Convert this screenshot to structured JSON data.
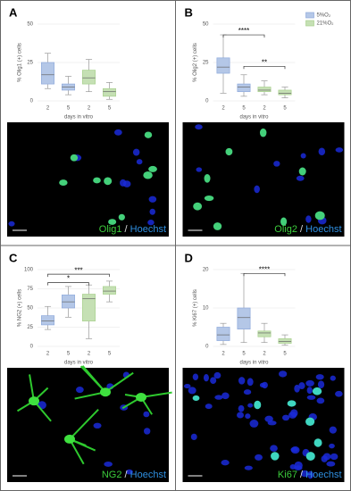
{
  "panels": [
    {
      "letter": "A",
      "stain": "Olig1",
      "separator": "/",
      "counterstain": "Hoechst"
    },
    {
      "letter": "B",
      "stain": "Olig2",
      "separator": "/",
      "counterstain": "Hoechst"
    },
    {
      "letter": "C",
      "stain": "NG2",
      "separator": "/",
      "counterstain": "Hoechst"
    },
    {
      "letter": "D",
      "stain": "Ki67",
      "separator": "/",
      "counterstain": "Hoechst"
    }
  ],
  "chart_data": [
    {
      "type": "box",
      "y_label": "% Olig1 (+) cells",
      "x_label": "days in vitro",
      "categories": [
        "2",
        "5",
        "2",
        "5"
      ],
      "ylim": [
        0,
        50
      ],
      "yticks": [
        0,
        25,
        50
      ],
      "grid": true,
      "legend": false,
      "annotations": [],
      "series": [
        {
          "color": "#b4c7e7",
          "values": [
            {
              "min": 8,
              "q1": 11,
              "median": 17,
              "q3": 25,
              "max": 31
            },
            {
              "min": 4,
              "q1": 7,
              "median": 9,
              "q3": 11,
              "max": 16
            },
            null,
            null
          ]
        },
        {
          "color": "#c5e0b4",
          "values": [
            null,
            null,
            {
              "min": 6,
              "q1": 11,
              "median": 15,
              "q3": 20,
              "max": 27
            },
            {
              "min": 1,
              "q1": 3,
              "median": 6,
              "q3": 8,
              "max": 12
            }
          ]
        }
      ]
    },
    {
      "type": "box",
      "y_label": "% Olig2 (+) cells",
      "x_label": "days in vitro",
      "categories": [
        "2",
        "5",
        "2",
        "5"
      ],
      "ylim": [
        0,
        50
      ],
      "yticks": [
        0,
        25,
        50
      ],
      "grid": true,
      "legend": true,
      "annotations": [
        "****",
        "**"
      ],
      "series": [
        {
          "name": "5%O₂",
          "color": "#b4c7e7",
          "values": [
            {
              "min": 5,
              "q1": 18,
              "median": 22,
              "q3": 28,
              "max": 43
            },
            {
              "min": 3,
              "q1": 6,
              "median": 9,
              "q3": 11,
              "max": 17
            },
            null,
            null
          ]
        },
        {
          "name": "21%O₂",
          "color": "#c5e0b4",
          "values": [
            null,
            null,
            {
              "min": 4,
              "q1": 6,
              "median": 7,
              "q3": 9,
              "max": 13
            },
            {
              "min": 2,
              "q1": 4,
              "median": 5,
              "q3": 7,
              "max": 9
            }
          ]
        }
      ]
    },
    {
      "type": "box",
      "y_label": "% NG2 (+) cells",
      "x_label": "days in vitro",
      "categories": [
        "2",
        "5",
        "2",
        "5"
      ],
      "ylim": [
        0,
        100
      ],
      "yticks": [
        0,
        25,
        50,
        75,
        100
      ],
      "grid": true,
      "legend": false,
      "annotations": [
        "*",
        "***"
      ],
      "series": [
        {
          "color": "#b4c7e7",
          "values": [
            {
              "min": 22,
              "q1": 28,
              "median": 33,
              "q3": 40,
              "max": 52
            },
            {
              "min": 38,
              "q1": 50,
              "median": 58,
              "q3": 67,
              "max": 78
            },
            null,
            null
          ]
        },
        {
          "color": "#c5e0b4",
          "values": [
            null,
            null,
            {
              "min": 10,
              "q1": 33,
              "median": 62,
              "q3": 68,
              "max": 80
            },
            {
              "min": 58,
              "q1": 68,
              "median": 72,
              "q3": 78,
              "max": 85
            }
          ]
        }
      ]
    },
    {
      "type": "box",
      "y_label": "% Ki67 (+) cells",
      "x_label": "days in vitro",
      "categories": [
        "2",
        "5",
        "2",
        "5"
      ],
      "ylim": [
        0,
        20
      ],
      "yticks": [
        0,
        10,
        20
      ],
      "grid": true,
      "legend": false,
      "annotations": [
        "****"
      ],
      "series": [
        {
          "color": "#b4c7e7",
          "values": [
            {
              "min": 0.5,
              "q1": 1.5,
              "median": 3,
              "q3": 5,
              "max": 6
            },
            {
              "min": 1,
              "q1": 4.5,
              "median": 7.5,
              "q3": 10,
              "max": 19
            },
            null,
            null
          ]
        },
        {
          "color": "#c5e0b4",
          "values": [
            null,
            null,
            {
              "min": 1,
              "q1": 2.5,
              "median": 3.5,
              "q3": 4,
              "max": 6
            },
            {
              "min": 0.3,
              "q1": 0.8,
              "median": 1.3,
              "q3": 2,
              "max": 3
            }
          ]
        }
      ]
    }
  ]
}
